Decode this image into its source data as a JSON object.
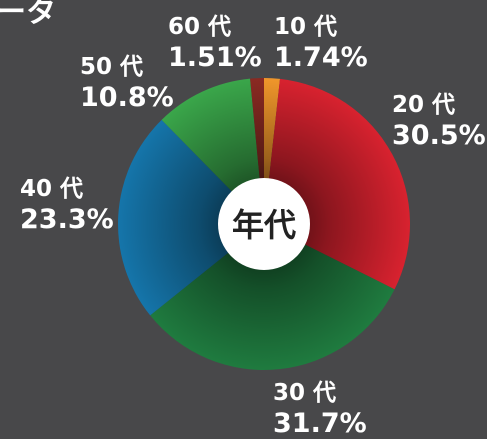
{
  "chart_data": {
    "type": "pie",
    "title": "ータ",
    "center_label": "年代",
    "categories": [
      "10 代",
      "20 代",
      "30 代",
      "40 代",
      "50 代",
      "60 代"
    ],
    "values": [
      1.74,
      30.5,
      31.7,
      23.3,
      10.8,
      1.51
    ],
    "value_labels": [
      "1.74%",
      "30.5%",
      "31.7%",
      "23.3%",
      "10.8%",
      "1.51%"
    ],
    "colors": [
      "#f0962b",
      "#d8222f",
      "#1f7b3f",
      "#1575aa",
      "#3aa64a",
      "#8a2a22"
    ]
  }
}
